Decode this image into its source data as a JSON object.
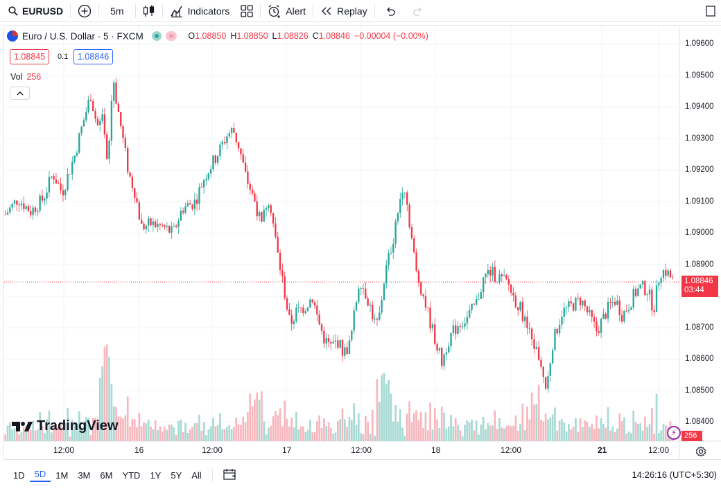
{
  "toolbar": {
    "symbol": "EURUSD",
    "interval": "5m",
    "indicators": "Indicators",
    "alert": "Alert",
    "replay": "Replay"
  },
  "legend": {
    "title": "Euro / U.S. Dollar · 5 · FXCM",
    "open_label": "O",
    "open": "1.08850",
    "high_label": "H",
    "high": "1.08850",
    "low_label": "L",
    "low": "1.08826",
    "close_label": "C",
    "close": "1.08846",
    "change": "−0.00004 (−0.00%)",
    "bid": "1.08845",
    "spread": "0.1",
    "ask": "1.08846",
    "volume_label": "Vol",
    "volume": "256"
  },
  "price_axis": {
    "ticks": [
      "1.09600",
      "1.09500",
      "1.09400",
      "1.09300",
      "1.09200",
      "1.09100",
      "1.09000",
      "1.08900",
      "1.08700",
      "1.08600",
      "1.08500",
      "1.08400"
    ],
    "last_price": "1.08846",
    "countdown": "03:44",
    "volume_tag": "256"
  },
  "time_axis": {
    "ticks": [
      "12:00",
      "16",
      "12:00",
      "17",
      "12:00",
      "18",
      "12:00",
      "21",
      "12:00"
    ]
  },
  "branding": {
    "logo": "TradingView"
  },
  "ranges": [
    "1D",
    "5D",
    "1M",
    "3M",
    "6M",
    "YTD",
    "1Y",
    "5Y",
    "All"
  ],
  "active_range": "5D",
  "clock": "14:26:16 (UTC+5:30)",
  "colors": {
    "up": "#26a69a",
    "down": "#f23645",
    "accent": "#2962ff"
  },
  "chart_data": {
    "type": "candlestick",
    "title": "Euro / U.S. Dollar · 5 · FXCM",
    "yrange": [
      1.0835,
      1.0965
    ],
    "path": [
      [
        0,
        1.0906
      ],
      [
        4,
        1.0911
      ],
      [
        8,
        1.0907
      ],
      [
        12,
        1.0911
      ],
      [
        15,
        1.0919
      ],
      [
        18,
        1.0913
      ],
      [
        22,
        1.0925
      ],
      [
        24,
        1.0933
      ],
      [
        27,
        1.0944
      ],
      [
        29,
        1.0934
      ],
      [
        31,
        1.0936
      ],
      [
        32,
        1.0921
      ],
      [
        33,
        1.093
      ],
      [
        34,
        1.0951
      ],
      [
        35,
        1.0943
      ],
      [
        37,
        1.0931
      ],
      [
        39,
        1.0919
      ],
      [
        41,
        1.0913
      ],
      [
        43,
        1.0902
      ],
      [
        46,
        1.0903
      ],
      [
        50,
        1.0902
      ],
      [
        53,
        1.09
      ],
      [
        56,
        1.0908
      ],
      [
        60,
        1.091
      ],
      [
        63,
        1.0918
      ],
      [
        67,
        1.0925
      ],
      [
        70,
        1.0931
      ],
      [
        72,
        1.0933
      ],
      [
        74,
        1.0927
      ],
      [
        76,
        1.0918
      ],
      [
        79,
        1.091
      ],
      [
        81,
        1.0902
      ],
      [
        83,
        1.0912
      ],
      [
        84,
        1.0908
      ],
      [
        86,
        1.0894
      ],
      [
        88,
        1.0883
      ],
      [
        90,
        1.0871
      ],
      [
        92,
        1.0875
      ],
      [
        95,
        1.0877
      ],
      [
        97,
        1.088
      ],
      [
        99,
        1.0872
      ],
      [
        101,
        1.0866
      ],
      [
        103,
        1.0864
      ],
      [
        105,
        1.0866
      ],
      [
        107,
        1.0862
      ],
      [
        109,
        1.0865
      ],
      [
        112,
        1.0886
      ],
      [
        115,
        1.0878
      ],
      [
        117,
        1.0871
      ],
      [
        118,
        1.0872
      ],
      [
        120,
        1.0887
      ],
      [
        123,
        1.09
      ],
      [
        125,
        1.0912
      ],
      [
        126,
        1.0917
      ],
      [
        128,
        1.0902
      ],
      [
        130,
        1.0887
      ],
      [
        132,
        1.0881
      ],
      [
        134,
        1.0873
      ],
      [
        136,
        1.0866
      ],
      [
        138,
        1.0859
      ],
      [
        140,
        1.0866
      ],
      [
        143,
        1.0871
      ],
      [
        146,
        1.0873
      ],
      [
        149,
        1.0878
      ],
      [
        151,
        1.0885
      ],
      [
        153,
        1.0888
      ],
      [
        156,
        1.0886
      ],
      [
        159,
        1.0884
      ],
      [
        161,
        1.0879
      ],
      [
        163,
        1.0876
      ],
      [
        165,
        1.087
      ],
      [
        167,
        1.0865
      ],
      [
        169,
        1.086
      ],
      [
        171,
        1.085
      ],
      [
        173,
        1.0865
      ],
      [
        176,
        1.0875
      ],
      [
        179,
        1.0877
      ],
      [
        182,
        1.0879
      ],
      [
        185,
        1.0873
      ],
      [
        187,
        1.0869
      ],
      [
        189,
        1.0873
      ],
      [
        191,
        1.0877
      ],
      [
        193,
        1.0879
      ],
      [
        195,
        1.0874
      ],
      [
        197,
        1.0877
      ],
      [
        199,
        1.0881
      ],
      [
        201,
        1.0883
      ],
      [
        203,
        1.0882
      ],
      [
        205,
        1.0876
      ],
      [
        207,
        1.0888
      ],
      [
        209,
        1.0888
      ],
      [
        211,
        1.0885
      ]
    ]
  }
}
